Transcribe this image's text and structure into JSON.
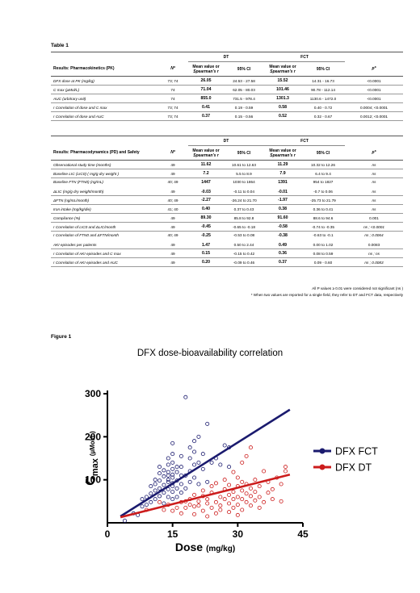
{
  "table1": {
    "label": "Table 1",
    "pk": {
      "header": "Results: Pharmacokinetics (PK)",
      "n_label": "N*",
      "dt_label": "DT",
      "fct_label": "FCT",
      "mean_label": "Mean value or",
      "mean_label2": "Spearman's r",
      "ci_label": "95% CI",
      "p_label": "p*",
      "rows": [
        {
          "label": "DFX dose at PK (mg/kg)",
          "n": "73; 74",
          "dt_mean": "26.05",
          "dt_ci": "24.53 - 27.58",
          "fct_mean": "15.52",
          "fct_ci": "14.31 - 16.73",
          "p": "<0.0001"
        },
        {
          "label": "C max (µMol/L)",
          "n": "74",
          "dt_mean": "71.04",
          "dt_ci": "62.05 - 80.03",
          "fct_mean": "101.46",
          "fct_ci": "90.78 - 112.14",
          "p": "<0.0001"
        },
        {
          "label": "AUC (arbitrary unit)",
          "n": "74",
          "dt_mean": "855.0",
          "dt_ci": "731.5 - 978.4",
          "fct_mean": "1301.3",
          "fct_ci": "1130.6 - 1472.0",
          "p": "<0.0001"
        },
        {
          "label": "r Correlation of dose and C max",
          "n": "73; 74",
          "dt_mean": "0.41",
          "dt_ci": "0.19 - 0.59",
          "fct_mean": "0.58",
          "fct_ci": "0.40 - 0.72",
          "p": "0.0004; <0.0001"
        },
        {
          "label": "r Correlation of dose and AUC",
          "n": "73; 74",
          "dt_mean": "0.37",
          "dt_ci": "0.15 - 0.56",
          "fct_mean": "0.52",
          "fct_ci": "0.32 - 0.67",
          "p": "0.0012; <0.0001"
        }
      ]
    },
    "pd": {
      "header": "Results: Pharmacodynamics (PD) and Safety",
      "rows": [
        {
          "label": "Observational study time (months)",
          "n": "49",
          "dt_mean": "11.62",
          "dt_ci": "10.61 to 12.63",
          "fct_mean": "11.29",
          "fct_ci": "10.32 to 12.26",
          "p": "ns",
          "gap": false
        },
        {
          "label": "Baseline LIC (LIC0) ( mg/g dry weight )",
          "n": "49",
          "dt_mean": "7.2",
          "dt_ci": "5.5 to 8.9",
          "fct_mean": "7.9",
          "fct_ci": "6.4 to 9.4",
          "p": "ns",
          "gap": false
        },
        {
          "label": "Baseline FTN (FTN0) (ng/mL)",
          "n": "40; 49",
          "dt_mean": "1447",
          "dt_ci": "1030 to 1864",
          "fct_mean": "1391",
          "fct_ci": "954 to 1827",
          "p": "ns",
          "gap": false
        },
        {
          "label": "ΔLIC (mg/g dry weight/month)",
          "n": "49",
          "dt_mean": "-0.03",
          "dt_ci": "-0.11 to 0.04",
          "fct_mean": "-0.01",
          "fct_ci": "-0.7 to 0.06",
          "p": "ns",
          "gap": true
        },
        {
          "label": "ΔFTN (ng/mL/month)",
          "n": "40; 49",
          "dt_mean": "-2.27",
          "dt_ci": "-26.24 to 21.70",
          "fct_mean": "-1.97",
          "fct_ci": "-25.73 to 21.79",
          "p": "ns",
          "gap": false
        },
        {
          "label": "Iron intake (mg/kg/die)",
          "n": "41; 40",
          "dt_mean": "0.40",
          "dt_ci": "0.37 to 0.43",
          "fct_mean": "0.38",
          "fct_ci": "0.36 to 0.41",
          "p": "ns",
          "gap": false
        },
        {
          "label": "Compliance (%)",
          "n": "49",
          "dt_mean": "89.30",
          "dt_ci": "85.8 to 92.8",
          "fct_mean": "91.60",
          "fct_ci": "88.6 to 94.6",
          "p": "0.001",
          "gap": false
        },
        {
          "label": "r Correlation of LIC0 and ΔLIC/month",
          "n": "49",
          "dt_mean": "-0.45",
          "dt_ci": "-0.65 to -0.18",
          "fct_mean": "-0.58",
          "fct_ci": "-0.74 to -0.35",
          "p": "ns ; <0.0001",
          "gap": false
        },
        {
          "label": "r Correlation of FTN0 and ΔFTN/month",
          "n": "40; 49",
          "dt_mean": "-0.25",
          "dt_ci": "-0.53 to 0.08",
          "fct_mean": "-0.38",
          "fct_ci": "-0.63 to -0.1",
          "p": "ns ; 0.0064",
          "gap": false
        },
        {
          "label": "AKI episodes per patients",
          "n": "49",
          "dt_mean": "1.47",
          "dt_ci": "0.50 to 2.44",
          "fct_mean": "0.49",
          "fct_ci": "0.00 to 1.02",
          "p": "0.0083",
          "gap": true
        },
        {
          "label": "r Correlation of AKI episodes and C max",
          "n": "49",
          "dt_mean": "0.15",
          "dt_ci": "-0.15 to 0.42",
          "fct_mean": "0.36",
          "fct_ci": "0.08 to 0.59",
          "p": "ns ; ns",
          "gap": false
        },
        {
          "label": "r Correlation of AKI episodes and AUC",
          "n": "49",
          "dt_mean": "0.20",
          "dt_ci": "-0.09 to 0.46",
          "fct_mean": "0.37",
          "fct_ci": "0.09 - 0.60",
          "p": "ns ; 0.0083",
          "gap": false
        }
      ]
    },
    "note1": "All P values ≥ 0.01 were considered not significant (ns )",
    "note2": "* When two values are reported for a single field, they refer to DT and FCT data, respectively"
  },
  "figure1": {
    "label": "Figure 1",
    "title": "DFX dose-bioavailability correlation"
  },
  "chart_data": {
    "type": "scatter",
    "title": "DFX dose-bioavailability correlation",
    "xlabel": "Dose",
    "xlabel_unit": "(mg/kg)",
    "ylabel": "C",
    "ylabel_sub": "max",
    "ylabel_unit": "(µMol/L)",
    "xlim": [
      0,
      45
    ],
    "ylim": [
      0,
      300
    ],
    "xticks": [
      "0",
      "15",
      "30",
      "45"
    ],
    "yticks": [
      "100",
      "200",
      "300"
    ],
    "grid": false,
    "legend_position": "right",
    "series": [
      {
        "name": "DFX FCT",
        "color": "#1a1a6e",
        "fit": [
          [
            3,
            15
          ],
          [
            42,
            263
          ]
        ],
        "points": [
          [
            4,
            5
          ],
          [
            6,
            22
          ],
          [
            7,
            18
          ],
          [
            8,
            38
          ],
          [
            8,
            55
          ],
          [
            9,
            42
          ],
          [
            9,
            60
          ],
          [
            10,
            48
          ],
          [
            10,
            68
          ],
          [
            10,
            85
          ],
          [
            11,
            55
          ],
          [
            11,
            75
          ],
          [
            11,
            90
          ],
          [
            11,
            100
          ],
          [
            12,
            62
          ],
          [
            12,
            80
          ],
          [
            12,
            98
          ],
          [
            12,
            115
          ],
          [
            12,
            130
          ],
          [
            13,
            45
          ],
          [
            13,
            70
          ],
          [
            13,
            88
          ],
          [
            13,
            108
          ],
          [
            13,
            122
          ],
          [
            14,
            60
          ],
          [
            14,
            78
          ],
          [
            14,
            95
          ],
          [
            14,
            100
          ],
          [
            14,
            110
          ],
          [
            14,
            118
          ],
          [
            14,
            135
          ],
          [
            14,
            150
          ],
          [
            15,
            55
          ],
          [
            15,
            72
          ],
          [
            15,
            85
          ],
          [
            15,
            92
          ],
          [
            15,
            105
          ],
          [
            15,
            112
          ],
          [
            15,
            125
          ],
          [
            15,
            140
          ],
          [
            15,
            160
          ],
          [
            15,
            185
          ],
          [
            16,
            60
          ],
          [
            16,
            80
          ],
          [
            16,
            98
          ],
          [
            16,
            118
          ],
          [
            16,
            130
          ],
          [
            17,
            70
          ],
          [
            17,
            90
          ],
          [
            17,
            110
          ],
          [
            17,
            130
          ],
          [
            17,
            155
          ],
          [
            18,
            292
          ],
          [
            18,
            110
          ],
          [
            18,
            80
          ],
          [
            19,
            95
          ],
          [
            19,
            120
          ],
          [
            19,
            150
          ],
          [
            19,
            175
          ],
          [
            20,
            105
          ],
          [
            20,
            135
          ],
          [
            20,
            165
          ],
          [
            20,
            190
          ],
          [
            21,
            90
          ],
          [
            21,
            140
          ],
          [
            21,
            200
          ],
          [
            22,
            125
          ],
          [
            22,
            160
          ],
          [
            23,
            230
          ],
          [
            23,
            95
          ],
          [
            24,
            140
          ],
          [
            25,
            150
          ],
          [
            26,
            135
          ],
          [
            27,
            180
          ],
          [
            28,
            130
          ],
          [
            28,
            175
          ]
        ]
      },
      {
        "name": "DFX DT",
        "color": "#cc1c1c",
        "fit": [
          [
            3,
            13
          ],
          [
            42,
            112
          ]
        ],
        "points": [
          [
            9,
            30
          ],
          [
            12,
            48
          ],
          [
            13,
            30
          ],
          [
            14,
            42
          ],
          [
            15,
            28
          ],
          [
            16,
            35
          ],
          [
            17,
            48
          ],
          [
            17,
            22
          ],
          [
            18,
            50
          ],
          [
            18,
            35
          ],
          [
            19,
            42
          ],
          [
            19,
            55
          ],
          [
            20,
            38
          ],
          [
            20,
            65
          ],
          [
            20,
            20
          ],
          [
            21,
            50
          ],
          [
            21,
            40
          ],
          [
            22,
            28
          ],
          [
            22,
            62
          ],
          [
            22,
            75
          ],
          [
            23,
            45
          ],
          [
            23,
            55
          ],
          [
            23,
            15
          ],
          [
            24,
            35
          ],
          [
            24,
            70
          ],
          [
            24,
            85
          ],
          [
            25,
            48
          ],
          [
            25,
            22
          ],
          [
            25,
            92
          ],
          [
            26,
            60
          ],
          [
            26,
            40
          ],
          [
            26,
            30
          ],
          [
            27,
            55
          ],
          [
            27,
            78
          ],
          [
            27,
            100
          ],
          [
            28,
            45
          ],
          [
            28,
            25
          ],
          [
            28,
            65
          ],
          [
            28,
            88
          ],
          [
            29,
            35
          ],
          [
            29,
            55
          ],
          [
            29,
            72
          ],
          [
            29,
            118
          ],
          [
            30,
            42
          ],
          [
            30,
            60
          ],
          [
            30,
            85
          ],
          [
            30,
            105
          ],
          [
            30,
            18
          ],
          [
            31,
            30
          ],
          [
            31,
            55
          ],
          [
            31,
            75
          ],
          [
            31,
            95
          ],
          [
            31,
            140
          ],
          [
            32,
            48
          ],
          [
            32,
            68
          ],
          [
            32,
            90
          ],
          [
            32,
            155
          ],
          [
            33,
            40
          ],
          [
            33,
            62
          ],
          [
            33,
            80
          ],
          [
            33,
            175
          ],
          [
            34,
            52
          ],
          [
            34,
            72
          ],
          [
            34,
            100
          ],
          [
            35,
            35
          ],
          [
            35,
            60
          ],
          [
            35,
            85
          ],
          [
            36,
            48
          ],
          [
            36,
            120
          ],
          [
            37,
            70
          ],
          [
            37,
            95
          ],
          [
            38,
            55
          ],
          [
            38,
            78
          ],
          [
            39,
            105
          ],
          [
            40,
            50
          ],
          [
            40,
            90
          ],
          [
            41,
            120
          ],
          [
            41,
            130
          ]
        ]
      }
    ]
  }
}
